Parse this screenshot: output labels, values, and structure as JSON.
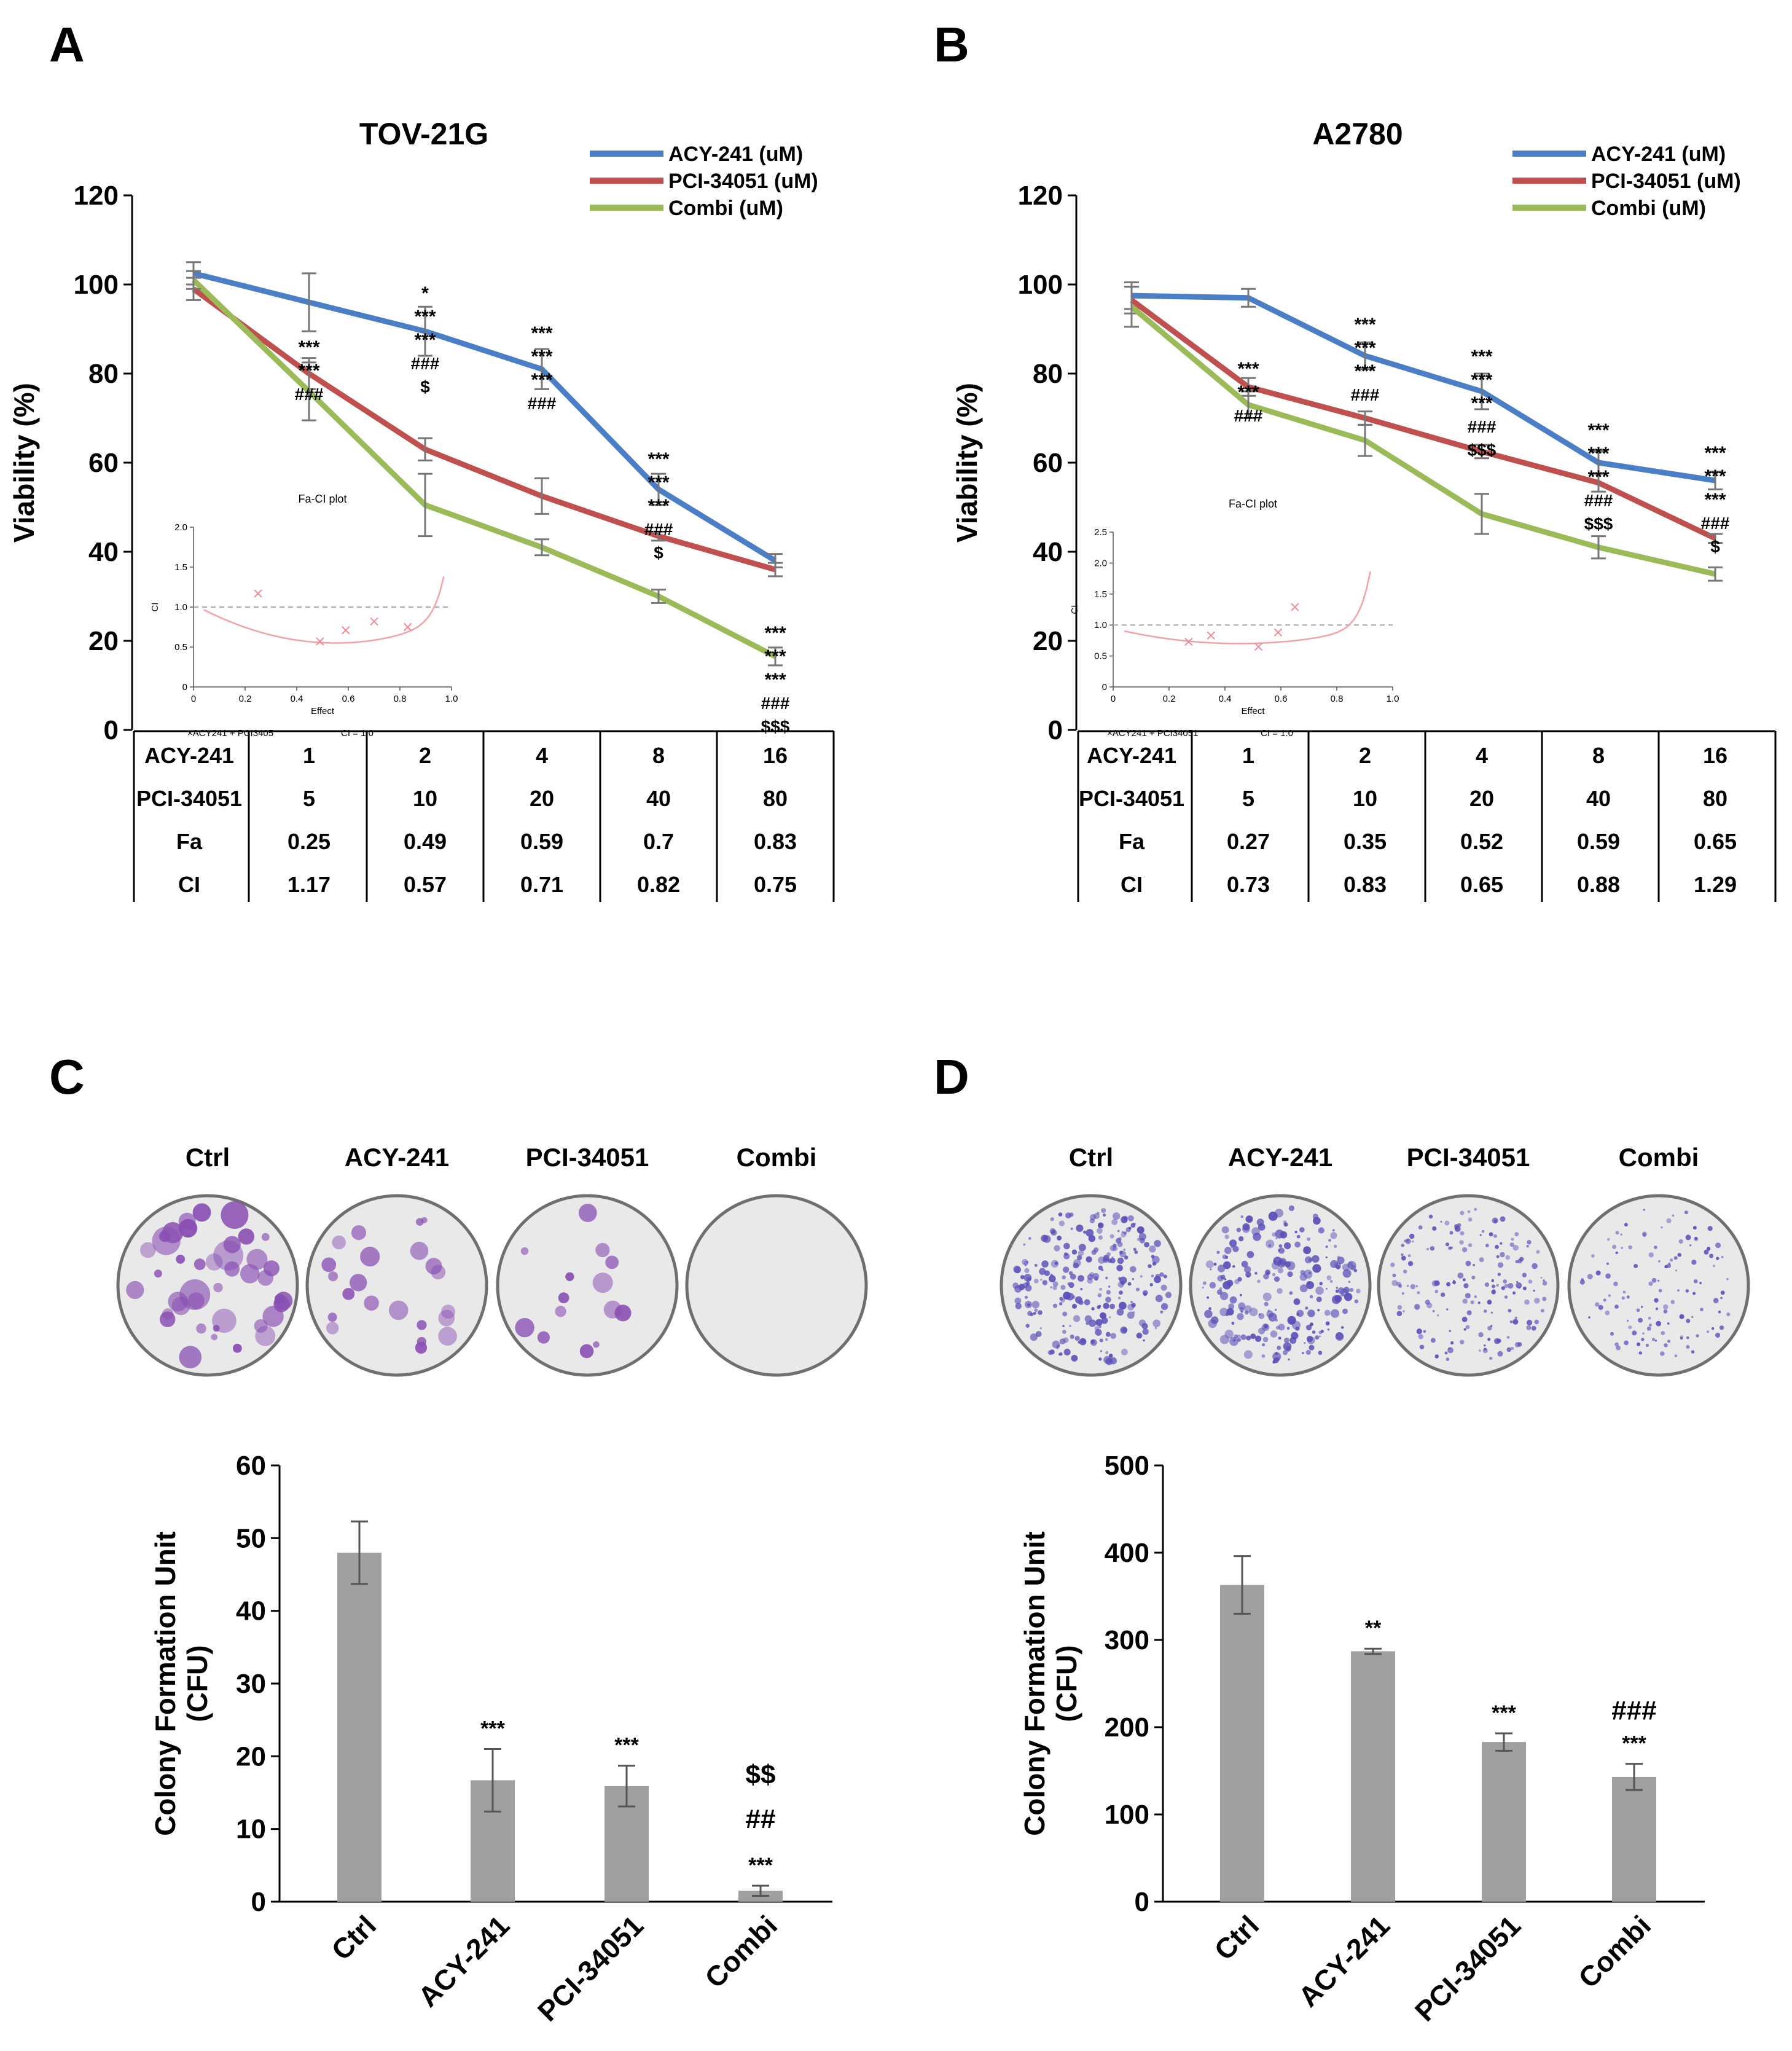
{
  "chart_data": [
    {
      "panel": "A",
      "type": "line",
      "title": "TOV-21G",
      "xlabel": "",
      "ylabel": "Viability (%)",
      "ylim": [
        0,
        120
      ],
      "yticks": [
        0,
        20,
        40,
        60,
        80,
        100,
        120
      ],
      "legend": "top-right",
      "series": [
        {
          "name": "ACY-241 (uM)",
          "color": "#4a7ec6",
          "values": [
            102.5,
            96,
            89.5,
            81,
            54,
            38
          ],
          "err": [
            2.5,
            6.5,
            5.5,
            4.5,
            3.5,
            1.5
          ]
        },
        {
          "name": "PCI-34051 (uM)",
          "color": "#c0504d",
          "values": [
            99,
            80,
            63,
            52.5,
            43.5,
            36
          ],
          "err": [
            2.5,
            3.5,
            2.5,
            4,
            1,
            1.5
          ]
        },
        {
          "name": "Combi (uM)",
          "color": "#9bbb59",
          "values": [
            101,
            76,
            50.5,
            41,
            30,
            16.5
          ],
          "err": [
            2,
            6.5,
            7,
            1.8,
            1.5,
            2
          ]
        }
      ],
      "annotations": [
        [
          "***",
          "***",
          "###"
        ],
        [
          "*",
          "***",
          "***",
          "###",
          "$"
        ],
        [
          "***",
          "***",
          "***",
          "###"
        ],
        [
          "***",
          "***",
          "***",
          "###",
          "$"
        ],
        [
          "***",
          "***",
          "***",
          "###",
          "$$$"
        ]
      ],
      "table": {
        "rows": [
          {
            "label": "ACY-241",
            "values": [
              "1",
              "2",
              "4",
              "8",
              "16"
            ]
          },
          {
            "label": "PCI-34051",
            "values": [
              "5",
              "10",
              "20",
              "40",
              "80"
            ]
          },
          {
            "label": "Fa",
            "values": [
              "0.25",
              "0.49",
              "0.59",
              "0.7",
              "0.83"
            ]
          },
          {
            "label": "CI",
            "values": [
              "1.17",
              "0.57",
              "0.71",
              "0.82",
              "0.75"
            ]
          }
        ]
      },
      "inset": {
        "title": "Fa-CI plot",
        "xlabel": "Effect",
        "ylabel": "CI",
        "xticks": [
          "0",
          "0.2",
          "0.4",
          "0.6",
          "0.8",
          "1.0"
        ],
        "yticks": [
          "0",
          "0.5",
          "1.0",
          "1.5",
          "2.0"
        ],
        "legend_series": "ACY241 + PCI3405",
        "legend_ref": "CI = 1.0",
        "points": [
          [
            0.25,
            1.17
          ],
          [
            0.49,
            0.57
          ],
          [
            0.59,
            0.71
          ],
          [
            0.7,
            0.82
          ],
          [
            0.83,
            0.75
          ]
        ]
      }
    },
    {
      "panel": "B",
      "type": "line",
      "title": "A2780",
      "xlabel": "",
      "ylabel": "Viability (%)",
      "ylim": [
        0,
        120
      ],
      "yticks": [
        0,
        20,
        40,
        60,
        80,
        100,
        120
      ],
      "legend": "top-right",
      "series": [
        {
          "name": "ACY-241 (uM)",
          "color": "#4a7ec6",
          "values": [
            97.5,
            97,
            84,
            76,
            60,
            56
          ],
          "err": [
            3,
            2,
            3,
            4,
            2.5,
            2
          ]
        },
        {
          "name": "PCI-34051 (uM)",
          "color": "#c0504d",
          "values": [
            96.5,
            77,
            70,
            62.5,
            55.5,
            43
          ],
          "err": [
            3,
            2,
            1.5,
            1.5,
            2,
            1
          ]
        },
        {
          "name": "Combi (uM)",
          "color": "#9bbb59",
          "values": [
            95,
            73,
            65,
            48.5,
            41,
            35
          ],
          "err": [
            4.5,
            3,
            3.5,
            4.5,
            2.5,
            1.5
          ]
        }
      ],
      "annotations": [
        [
          "***",
          "***",
          "###"
        ],
        [
          "***",
          "***",
          "***",
          "###"
        ],
        [
          "***",
          "***",
          "***",
          "###",
          "$$$"
        ],
        [
          "***",
          "***",
          "***",
          "###",
          "$$$"
        ],
        [
          "***",
          "***",
          "***",
          "###",
          "$"
        ]
      ],
      "table": {
        "rows": [
          {
            "label": "ACY-241",
            "values": [
              "1",
              "2",
              "4",
              "8",
              "16"
            ]
          },
          {
            "label": "PCI-34051",
            "values": [
              "5",
              "10",
              "20",
              "40",
              "80"
            ]
          },
          {
            "label": "Fa",
            "values": [
              "0.27",
              "0.35",
              "0.52",
              "0.59",
              "0.65"
            ]
          },
          {
            "label": "CI",
            "values": [
              "0.73",
              "0.83",
              "0.65",
              "0.88",
              "1.29"
            ]
          }
        ]
      },
      "inset": {
        "title": "Fa-CI plot",
        "xlabel": "Effect",
        "ylabel": "CI",
        "xticks": [
          "0",
          "0.2",
          "0.4",
          "0.6",
          "0.8",
          "1.0"
        ],
        "yticks": [
          "0",
          "0.5",
          "1.0",
          "1.5",
          "2.0",
          "2.5"
        ],
        "legend_series": "ACY241 + PCI34051",
        "legend_ref": "CI = 1.0",
        "points": [
          [
            0.27,
            0.73
          ],
          [
            0.35,
            0.83
          ],
          [
            0.52,
            0.65
          ],
          [
            0.59,
            0.88
          ],
          [
            0.65,
            1.29
          ]
        ]
      }
    },
    {
      "panel": "C",
      "type": "bar",
      "categories": [
        "Ctrl",
        "ACY-241",
        "PCI-34051",
        "Combi"
      ],
      "values": [
        48,
        16.7,
        15.9,
        1.5
      ],
      "err": [
        4.3,
        4.3,
        2.8,
        0.7
      ],
      "ylabel": "Colony Formation Unit (CFU)",
      "ylim": [
        0,
        60
      ],
      "yticks": [
        0,
        10,
        20,
        30,
        40,
        50,
        60
      ],
      "annotations": [
        [],
        [
          "***"
        ],
        [
          "***"
        ],
        [
          "***",
          "##",
          "$$"
        ]
      ]
    },
    {
      "panel": "D",
      "type": "bar",
      "categories": [
        "Ctrl",
        "ACY-241",
        "PCI-34051",
        "Combi"
      ],
      "values": [
        363,
        287,
        183,
        143
      ],
      "err": [
        33,
        3,
        10,
        15
      ],
      "ylabel": "Colony Formation Unit (CFU)",
      "ylim": [
        0,
        500
      ],
      "yticks": [
        0,
        100,
        200,
        300,
        400,
        500
      ],
      "annotations": [
        [],
        [
          "**"
        ],
        [
          "***"
        ],
        [
          "***",
          "###"
        ]
      ]
    }
  ],
  "panels": {
    "a": "A",
    "b": "B",
    "c": "C",
    "d": "D"
  },
  "dishes": {
    "C": [
      "Ctrl",
      "ACY-241",
      "PCI-34051",
      "Combi"
    ],
    "D": [
      "Ctrl",
      "ACY-241",
      "PCI-34051",
      "Combi"
    ]
  },
  "colors": {
    "bar": "#a0a0a0",
    "dish_bg": "#e9e9ea",
    "colony_c": "#8a4fb3",
    "colony_d": "#5a4fb8"
  }
}
